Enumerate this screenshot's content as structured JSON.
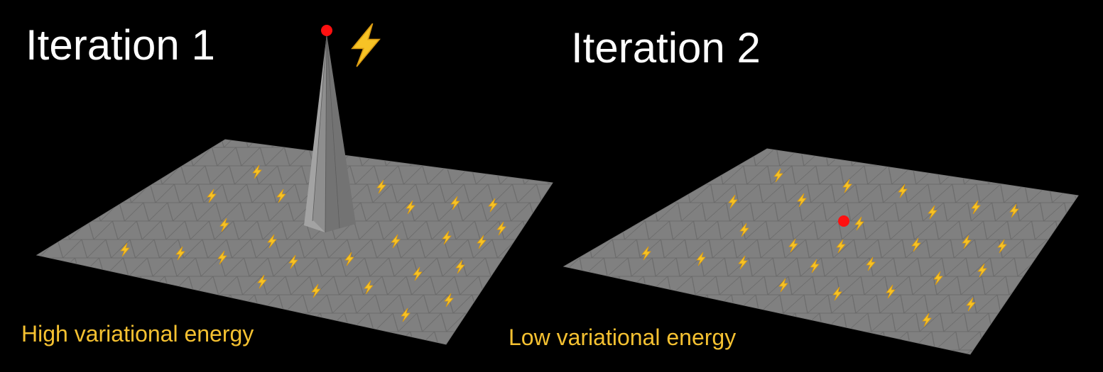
{
  "panels": [
    {
      "title": "Iteration 1",
      "caption": "High variational energy"
    },
    {
      "title": "Iteration 2",
      "caption": "Low variational energy"
    }
  ],
  "colors": {
    "background": "#000000",
    "mesh_fill": "#808080",
    "mesh_edge": "#6b6b6b",
    "spike_light": "#9a9a9a",
    "spike_dark": "#6e6e6e",
    "vertex_dot": "#ff0000",
    "bolt": "#f7c325",
    "caption": "#f5c131",
    "title": "#ffffff"
  },
  "icons": {
    "energy": "lightning-bolt-icon",
    "vertex": "red-vertex-dot"
  }
}
